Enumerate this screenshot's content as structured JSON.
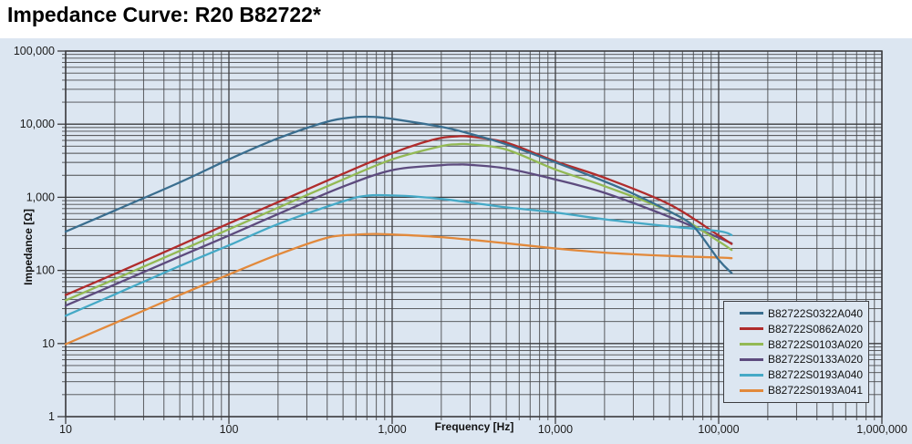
{
  "title": "Impedance Curve: R20 B82722*",
  "colors": {
    "page_bg": "#ffffff",
    "chart_bg": "#dce6f1",
    "grid_minor": "#4a4b4e",
    "grid_major": "#3c3d40",
    "frame": "#3c3d40",
    "tick_text": "#1c1c1c",
    "title_text": "#000000"
  },
  "chart_data": {
    "type": "line",
    "title": "Impedance Curve: R20 B82722*",
    "xlabel": "Frequency [Hz]",
    "ylabel": "Impedance [Ω]",
    "x_scale": "log",
    "y_scale": "log",
    "xlim": [
      10,
      1000000
    ],
    "ylim": [
      1,
      100000
    ],
    "x_ticks": [
      "10",
      "100",
      "1,000",
      "10,000",
      "100,000",
      "1,000,000"
    ],
    "y_ticks": [
      "1",
      "10",
      "100",
      "1,000",
      "10,000",
      "100,000"
    ],
    "grid": "major and minor logarithmic gridlines on both axes",
    "legend_position": "inside bottom-right",
    "series": [
      {
        "name": "B82722S0322A040",
        "color": "#3a6e8f",
        "points": [
          [
            10,
            340
          ],
          [
            20,
            660
          ],
          [
            50,
            1600
          ],
          [
            100,
            3300
          ],
          [
            200,
            6400
          ],
          [
            400,
            10800
          ],
          [
            600,
            12500
          ],
          [
            800,
            12500
          ],
          [
            1000,
            11800
          ],
          [
            2000,
            9200
          ],
          [
            3000,
            7400
          ],
          [
            5000,
            5300
          ],
          [
            10000,
            3000
          ],
          [
            20000,
            1650
          ],
          [
            30000,
            1120
          ],
          [
            50000,
            640
          ],
          [
            70000,
            400
          ],
          [
            100000,
            140
          ],
          [
            120000,
            92
          ]
        ]
      },
      {
        "name": "B82722S0862A020",
        "color": "#b02c2c",
        "points": [
          [
            10,
            46
          ],
          [
            20,
            90
          ],
          [
            50,
            220
          ],
          [
            100,
            440
          ],
          [
            200,
            860
          ],
          [
            500,
            2100
          ],
          [
            1000,
            4000
          ],
          [
            1500,
            5500
          ],
          [
            2000,
            6500
          ],
          [
            2500,
            6800
          ],
          [
            3000,
            6750
          ],
          [
            5000,
            5600
          ],
          [
            10000,
            3100
          ],
          [
            20000,
            1850
          ],
          [
            50000,
            800
          ],
          [
            100000,
            300
          ],
          [
            120000,
            230
          ]
        ]
      },
      {
        "name": "B82722S0103A020",
        "color": "#93b954",
        "points": [
          [
            10,
            39
          ],
          [
            20,
            76
          ],
          [
            50,
            185
          ],
          [
            100,
            365
          ],
          [
            200,
            720
          ],
          [
            500,
            1750
          ],
          [
            1000,
            3300
          ],
          [
            2000,
            5000
          ],
          [
            2500,
            5300
          ],
          [
            3000,
            5280
          ],
          [
            5000,
            4500
          ],
          [
            10000,
            2400
          ],
          [
            20000,
            1420
          ],
          [
            50000,
            640
          ],
          [
            100000,
            250
          ],
          [
            120000,
            190
          ]
        ]
      },
      {
        "name": "B82722S0133A020",
        "color": "#5d4b7e",
        "points": [
          [
            10,
            33
          ],
          [
            20,
            64
          ],
          [
            50,
            155
          ],
          [
            100,
            300
          ],
          [
            200,
            590
          ],
          [
            500,
            1400
          ],
          [
            1000,
            2350
          ],
          [
            2000,
            2750
          ],
          [
            2500,
            2800
          ],
          [
            3000,
            2780
          ],
          [
            5000,
            2480
          ],
          [
            10000,
            1750
          ],
          [
            20000,
            1150
          ],
          [
            50000,
            540
          ],
          [
            100000,
            280
          ],
          [
            120000,
            235
          ]
        ]
      },
      {
        "name": "B82722S0193A040",
        "color": "#45a9c6",
        "points": [
          [
            10,
            24
          ],
          [
            20,
            47
          ],
          [
            50,
            115
          ],
          [
            100,
            220
          ],
          [
            200,
            430
          ],
          [
            500,
            880
          ],
          [
            700,
            1050
          ],
          [
            1000,
            1060
          ],
          [
            1500,
            1010
          ],
          [
            2000,
            950
          ],
          [
            3000,
            850
          ],
          [
            5000,
            730
          ],
          [
            10000,
            620
          ],
          [
            20000,
            500
          ],
          [
            50000,
            400
          ],
          [
            100000,
            345
          ],
          [
            120000,
            305
          ]
        ]
      },
      {
        "name": "B82722S0193A041",
        "color": "#e2893b",
        "points": [
          [
            10,
            9.8
          ],
          [
            20,
            19
          ],
          [
            50,
            46
          ],
          [
            100,
            88
          ],
          [
            200,
            165
          ],
          [
            400,
            280
          ],
          [
            600,
            308
          ],
          [
            800,
            315
          ],
          [
            1000,
            310
          ],
          [
            2000,
            285
          ],
          [
            5000,
            235
          ],
          [
            10000,
            200
          ],
          [
            20000,
            175
          ],
          [
            50000,
            158
          ],
          [
            100000,
            150
          ],
          [
            120000,
            147
          ]
        ]
      }
    ]
  }
}
